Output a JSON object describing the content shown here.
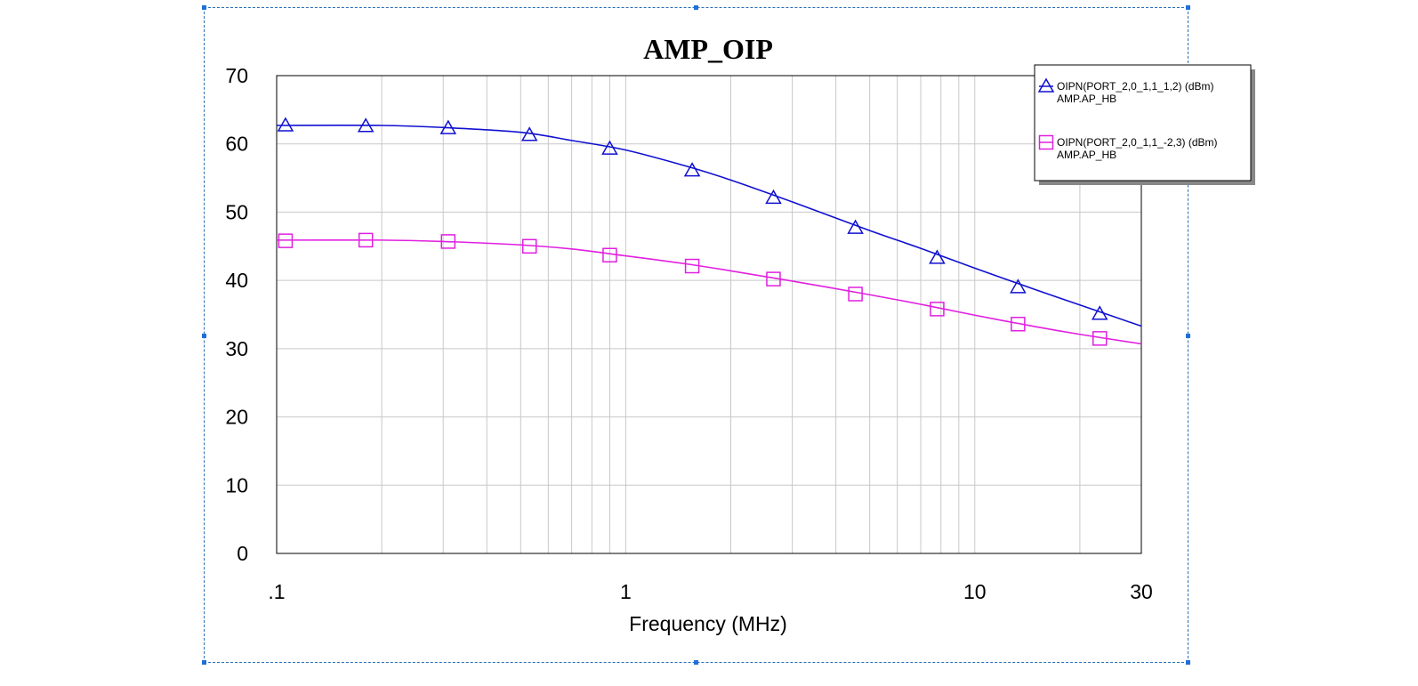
{
  "chart_data": {
    "type": "line",
    "title": "AMP_OIP",
    "xlabel": "Frequency (MHz)",
    "ylabel": "",
    "x_scale": "log",
    "xlim": [
      0.1,
      30
    ],
    "ylim": [
      0,
      70
    ],
    "x_ticks": [
      {
        "value": 0.1,
        "label": ".1"
      },
      {
        "value": 1,
        "label": "1"
      },
      {
        "value": 10,
        "label": "10"
      },
      {
        "value": 30,
        "label": "30"
      }
    ],
    "y_ticks": [
      0,
      10,
      20,
      30,
      40,
      50,
      60,
      70
    ],
    "grid": true,
    "legend_position": "top-right",
    "series": [
      {
        "name": "OIPN(PORT_2,0_1,1_1,2) (dBm)",
        "subname": "AMP.AP_HB",
        "color": "#1010d0",
        "marker": "triangle",
        "curve": [
          [
            0.1,
            62.7
          ],
          [
            0.2,
            62.7
          ],
          [
            0.3,
            62.4
          ],
          [
            0.5,
            61.7
          ],
          [
            0.7,
            60.5
          ],
          [
            1,
            59.1
          ],
          [
            1.5,
            56.7
          ],
          [
            2,
            54.7
          ],
          [
            3,
            51.5
          ],
          [
            5,
            47.3
          ],
          [
            7,
            44.7
          ],
          [
            10,
            41.8
          ],
          [
            15,
            38.6
          ],
          [
            20,
            36.4
          ],
          [
            30,
            33.3
          ]
        ],
        "markers": [
          [
            0.106,
            62.7
          ],
          [
            0.18,
            62.6
          ],
          [
            0.31,
            62.3
          ],
          [
            0.53,
            61.3
          ],
          [
            0.9,
            59.3
          ],
          [
            1.55,
            56.1
          ],
          [
            2.65,
            52.1
          ],
          [
            4.55,
            47.7
          ],
          [
            7.8,
            43.3
          ],
          [
            13.3,
            39.0
          ],
          [
            22.8,
            35.1
          ]
        ]
      },
      {
        "name": "OIPN(PORT_2,0_1,1_-2,3) (dBm)",
        "subname": "AMP.AP_HB",
        "color": "#e020e0",
        "marker": "square",
        "curve": [
          [
            0.1,
            45.9
          ],
          [
            0.2,
            45.9
          ],
          [
            0.3,
            45.7
          ],
          [
            0.5,
            45.2
          ],
          [
            0.7,
            44.6
          ],
          [
            1,
            43.6
          ],
          [
            1.5,
            42.4
          ],
          [
            2,
            41.4
          ],
          [
            3,
            39.9
          ],
          [
            5,
            37.9
          ],
          [
            7,
            36.5
          ],
          [
            10,
            34.9
          ],
          [
            15,
            33.2
          ],
          [
            20,
            32.1
          ],
          [
            30,
            30.7
          ]
        ],
        "markers": [
          [
            0.106,
            45.8
          ],
          [
            0.18,
            45.9
          ],
          [
            0.31,
            45.7
          ],
          [
            0.53,
            45.0
          ],
          [
            0.9,
            43.7
          ],
          [
            1.55,
            42.1
          ],
          [
            2.65,
            40.2
          ],
          [
            4.55,
            38.0
          ],
          [
            7.8,
            35.8
          ],
          [
            13.3,
            33.6
          ],
          [
            22.8,
            31.5
          ]
        ]
      }
    ]
  }
}
